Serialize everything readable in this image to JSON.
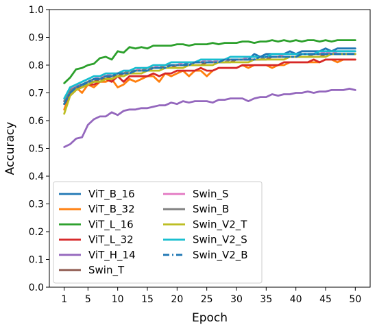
{
  "chart_data": {
    "type": "line",
    "title": "",
    "xlabel": "Epoch",
    "ylabel": "Accuracy",
    "xlim": [
      -1.5,
      52.5
    ],
    "ylim": [
      0.0,
      1.0
    ],
    "xticks": [
      1,
      5,
      10,
      15,
      20,
      25,
      30,
      35,
      40,
      45,
      50
    ],
    "yticks": [
      0.0,
      0.1,
      0.2,
      0.3,
      0.4,
      0.5,
      0.6,
      0.7,
      0.8,
      0.9,
      1.0
    ],
    "grid": false,
    "legend_position": "lower-left",
    "x": [
      1,
      2,
      3,
      4,
      5,
      6,
      7,
      8,
      9,
      10,
      11,
      12,
      13,
      14,
      15,
      16,
      17,
      18,
      19,
      20,
      21,
      22,
      23,
      24,
      25,
      26,
      27,
      28,
      29,
      30,
      31,
      32,
      33,
      34,
      35,
      36,
      37,
      38,
      39,
      40,
      41,
      42,
      43,
      44,
      45,
      46,
      47,
      48,
      49,
      50
    ],
    "series": [
      {
        "name": "ViT_B_16",
        "color": "#1f77b4",
        "dash": "solid",
        "values": [
          0.67,
          0.71,
          0.73,
          0.72,
          0.74,
          0.74,
          0.75,
          0.76,
          0.76,
          0.77,
          0.77,
          0.78,
          0.78,
          0.78,
          0.79,
          0.79,
          0.79,
          0.8,
          0.8,
          0.8,
          0.8,
          0.81,
          0.81,
          0.81,
          0.81,
          0.81,
          0.82,
          0.82,
          0.82,
          0.82,
          0.82,
          0.82,
          0.84,
          0.83,
          0.84,
          0.84,
          0.84,
          0.84,
          0.85,
          0.84,
          0.85,
          0.85,
          0.85,
          0.85,
          0.86,
          0.85,
          0.86,
          0.86,
          0.86,
          0.86
        ]
      },
      {
        "name": "ViT_B_32",
        "color": "#ff7f0e",
        "dash": "solid",
        "values": [
          0.64,
          0.7,
          0.72,
          0.7,
          0.73,
          0.72,
          0.74,
          0.74,
          0.75,
          0.72,
          0.73,
          0.75,
          0.74,
          0.75,
          0.76,
          0.76,
          0.74,
          0.77,
          0.76,
          0.77,
          0.78,
          0.76,
          0.78,
          0.78,
          0.76,
          0.78,
          0.79,
          0.79,
          0.79,
          0.79,
          0.8,
          0.79,
          0.8,
          0.8,
          0.8,
          0.79,
          0.8,
          0.8,
          0.81,
          0.81,
          0.81,
          0.81,
          0.81,
          0.81,
          0.82,
          0.82,
          0.81,
          0.82,
          0.82,
          0.82
        ]
      },
      {
        "name": "ViT_L_16",
        "color": "#2ca02c",
        "dash": "solid",
        "values": [
          0.735,
          0.755,
          0.785,
          0.79,
          0.8,
          0.805,
          0.825,
          0.83,
          0.82,
          0.85,
          0.845,
          0.865,
          0.86,
          0.865,
          0.86,
          0.87,
          0.87,
          0.87,
          0.87,
          0.875,
          0.875,
          0.87,
          0.875,
          0.875,
          0.875,
          0.88,
          0.875,
          0.88,
          0.88,
          0.88,
          0.885,
          0.885,
          0.88,
          0.885,
          0.885,
          0.89,
          0.885,
          0.89,
          0.885,
          0.89,
          0.885,
          0.89,
          0.89,
          0.885,
          0.89,
          0.885,
          0.89,
          0.89,
          0.89,
          0.89
        ]
      },
      {
        "name": "ViT_L_32",
        "color": "#d62728",
        "dash": "solid",
        "values": [
          0.66,
          0.69,
          0.71,
          0.72,
          0.73,
          0.73,
          0.74,
          0.75,
          0.74,
          0.76,
          0.74,
          0.76,
          0.76,
          0.76,
          0.76,
          0.77,
          0.76,
          0.77,
          0.77,
          0.78,
          0.78,
          0.78,
          0.78,
          0.79,
          0.78,
          0.78,
          0.79,
          0.79,
          0.79,
          0.79,
          0.8,
          0.8,
          0.8,
          0.8,
          0.8,
          0.8,
          0.8,
          0.81,
          0.81,
          0.81,
          0.81,
          0.81,
          0.82,
          0.81,
          0.82,
          0.82,
          0.82,
          0.82,
          0.82,
          0.82
        ]
      },
      {
        "name": "ViT_H_14",
        "color": "#9467bd",
        "dash": "solid",
        "values": [
          0.505,
          0.515,
          0.535,
          0.54,
          0.585,
          0.605,
          0.615,
          0.615,
          0.63,
          0.62,
          0.635,
          0.64,
          0.64,
          0.645,
          0.645,
          0.65,
          0.655,
          0.655,
          0.665,
          0.66,
          0.67,
          0.665,
          0.67,
          0.67,
          0.67,
          0.665,
          0.675,
          0.675,
          0.68,
          0.68,
          0.68,
          0.67,
          0.68,
          0.685,
          0.685,
          0.695,
          0.69,
          0.695,
          0.695,
          0.7,
          0.7,
          0.705,
          0.7,
          0.705,
          0.705,
          0.71,
          0.71,
          0.71,
          0.715,
          0.71
        ]
      },
      {
        "name": "Swin_T",
        "color": "#8c564b",
        "dash": "solid",
        "values": [
          0.66,
          0.7,
          0.72,
          0.72,
          0.73,
          0.74,
          0.75,
          0.75,
          0.76,
          0.76,
          0.77,
          0.77,
          0.78,
          0.78,
          0.78,
          0.79,
          0.79,
          0.79,
          0.79,
          0.8,
          0.8,
          0.8,
          0.8,
          0.8,
          0.81,
          0.81,
          0.81,
          0.81,
          0.81,
          0.82,
          0.82,
          0.82,
          0.82,
          0.82,
          0.82,
          0.83,
          0.83,
          0.83,
          0.83,
          0.83,
          0.83,
          0.83,
          0.83,
          0.83,
          0.84,
          0.84,
          0.84,
          0.84,
          0.84,
          0.84
        ]
      },
      {
        "name": "Swin_S",
        "color": "#e377c2",
        "dash": "solid",
        "values": [
          0.67,
          0.71,
          0.73,
          0.73,
          0.74,
          0.75,
          0.76,
          0.76,
          0.77,
          0.77,
          0.78,
          0.78,
          0.78,
          0.79,
          0.79,
          0.79,
          0.8,
          0.8,
          0.8,
          0.8,
          0.81,
          0.81,
          0.81,
          0.81,
          0.82,
          0.81,
          0.82,
          0.82,
          0.82,
          0.82,
          0.82,
          0.83,
          0.83,
          0.83,
          0.83,
          0.83,
          0.83,
          0.84,
          0.84,
          0.84,
          0.84,
          0.84,
          0.84,
          0.84,
          0.85,
          0.84,
          0.85,
          0.85,
          0.85,
          0.85
        ]
      },
      {
        "name": "Swin_B",
        "color": "#7f7f7f",
        "dash": "solid",
        "values": [
          0.67,
          0.71,
          0.72,
          0.73,
          0.74,
          0.75,
          0.75,
          0.76,
          0.76,
          0.77,
          0.77,
          0.78,
          0.78,
          0.78,
          0.79,
          0.79,
          0.79,
          0.8,
          0.8,
          0.8,
          0.8,
          0.8,
          0.81,
          0.81,
          0.81,
          0.81,
          0.81,
          0.81,
          0.82,
          0.82,
          0.82,
          0.82,
          0.82,
          0.82,
          0.83,
          0.83,
          0.83,
          0.83,
          0.83,
          0.83,
          0.83,
          0.83,
          0.84,
          0.84,
          0.84,
          0.84,
          0.84,
          0.84,
          0.84,
          0.84
        ]
      },
      {
        "name": "Swin_V2_T",
        "color": "#bcbd22",
        "dash": "solid",
        "values": [
          0.625,
          0.69,
          0.71,
          0.72,
          0.73,
          0.74,
          0.74,
          0.75,
          0.75,
          0.76,
          0.76,
          0.77,
          0.77,
          0.77,
          0.78,
          0.78,
          0.78,
          0.79,
          0.79,
          0.79,
          0.79,
          0.8,
          0.8,
          0.8,
          0.8,
          0.8,
          0.81,
          0.81,
          0.81,
          0.81,
          0.81,
          0.81,
          0.82,
          0.82,
          0.82,
          0.82,
          0.82,
          0.82,
          0.83,
          0.83,
          0.83,
          0.83,
          0.83,
          0.83,
          0.83,
          0.84,
          0.84,
          0.84,
          0.84,
          0.84
        ]
      },
      {
        "name": "Swin_V2_S",
        "color": "#17becf",
        "dash": "solid",
        "values": [
          0.68,
          0.72,
          0.73,
          0.74,
          0.75,
          0.76,
          0.76,
          0.77,
          0.77,
          0.77,
          0.78,
          0.78,
          0.79,
          0.79,
          0.79,
          0.8,
          0.8,
          0.8,
          0.81,
          0.81,
          0.81,
          0.81,
          0.81,
          0.82,
          0.82,
          0.82,
          0.82,
          0.82,
          0.83,
          0.83,
          0.83,
          0.83,
          0.83,
          0.83,
          0.83,
          0.84,
          0.84,
          0.84,
          0.84,
          0.84,
          0.84,
          0.84,
          0.84,
          0.85,
          0.85,
          0.85,
          0.85,
          0.85,
          0.85,
          0.85
        ]
      },
      {
        "name": "Swin_V2_B",
        "color": "#1f77b4",
        "dash": "dashdot",
        "values": [
          0.66,
          0.7,
          0.72,
          0.73,
          0.74,
          0.75,
          0.75,
          0.76,
          0.76,
          0.77,
          0.77,
          0.77,
          0.78,
          0.78,
          0.78,
          0.79,
          0.79,
          0.79,
          0.8,
          0.8,
          0.8,
          0.8,
          0.81,
          0.81,
          0.81,
          0.81,
          0.81,
          0.82,
          0.82,
          0.82,
          0.82,
          0.82,
          0.82,
          0.83,
          0.83,
          0.83,
          0.83,
          0.83,
          0.83,
          0.83,
          0.84,
          0.84,
          0.84,
          0.84,
          0.84,
          0.84,
          0.84,
          0.84,
          0.84,
          0.84
        ]
      }
    ]
  }
}
